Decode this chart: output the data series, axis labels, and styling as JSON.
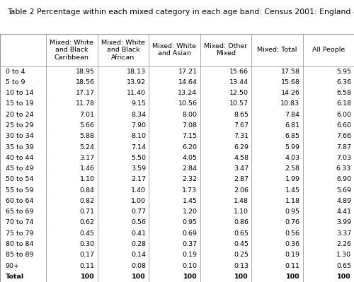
{
  "title": "Table 2 Percentage within each mixed category in each age band: Census 2001: England and Wales",
  "col_headers": [
    "Mixed: White\nand Black\nCaribbean",
    "Mixed: White\nand Black\nAfrican",
    "Mixed: White\nand Asian",
    "Mixed: Other\nMixed",
    "Mixed: Total",
    "All People"
  ],
  "row_labels": [
    "0 to 4",
    "5 to 9",
    "10 to 14",
    "15 to 19",
    "20 to 24",
    "25 to 29",
    "30 to 34",
    "35 to 39",
    "40 to 44",
    "45 to 49",
    "50 to 54",
    "55 to 59",
    "60 to 64",
    "65 to 69",
    "70 to 74",
    "75 to 79",
    "80 to 84",
    "85 to 89",
    "90+",
    "Total"
  ],
  "data": [
    [
      "18.95",
      "18.13",
      "17.21",
      "15.66",
      "17.58",
      "5.95"
    ],
    [
      "18.56",
      "13.92",
      "14.64",
      "13.44",
      "15.68",
      "6.36"
    ],
    [
      "17.17",
      "11.40",
      "13.24",
      "12.50",
      "14.26",
      "6.58"
    ],
    [
      "11.78",
      "9.15",
      "10.56",
      "10.57",
      "10.83",
      "6.18"
    ],
    [
      "7.01",
      "8.34",
      "8.00",
      "8.65",
      "7.84",
      "6.00"
    ],
    [
      "5.66",
      "7.90",
      "7.08",
      "7.67",
      "6.81",
      "6.60"
    ],
    [
      "5.88",
      "8.10",
      "7.15",
      "7.31",
      "6.85",
      "7.66"
    ],
    [
      "5.24",
      "7.14",
      "6.20",
      "6.29",
      "5.99",
      "7.87"
    ],
    [
      "3.17",
      "5.50",
      "4.05",
      "4.58",
      "4.03",
      "7.03"
    ],
    [
      "1.46",
      "3.59",
      "2.84",
      "3.47",
      "2.58",
      "6.33"
    ],
    [
      "1.10",
      "2.17",
      "2.32",
      "2.87",
      "1.99",
      "6.90"
    ],
    [
      "0.84",
      "1.40",
      "1.73",
      "2.06",
      "1.45",
      "5.69"
    ],
    [
      "0.82",
      "1.00",
      "1.45",
      "1.48",
      "1.18",
      "4.89"
    ],
    [
      "0.71",
      "0.77",
      "1.20",
      "1.10",
      "0.95",
      "4.41"
    ],
    [
      "0.62",
      "0.56",
      "0.95",
      "0.86",
      "0.76",
      "3.99"
    ],
    [
      "0.45",
      "0.41",
      "0.69",
      "0.65",
      "0.56",
      "3.37"
    ],
    [
      "0.30",
      "0.28",
      "0.37",
      "0.45",
      "0.36",
      "2.26"
    ],
    [
      "0.17",
      "0.14",
      "0.19",
      "0.25",
      "0.19",
      "1.30"
    ],
    [
      "0.11",
      "0.08",
      "0.10",
      "0.13",
      "0.11",
      "0.65"
    ],
    [
      "100",
      "100",
      "100",
      "100",
      "100",
      "100"
    ]
  ],
  "bg_color": "#ffffff",
  "grid_color": "#888888",
  "text_color": "#000000",
  "title_fontsize": 7.8,
  "header_fontsize": 6.8,
  "cell_fontsize": 6.8
}
